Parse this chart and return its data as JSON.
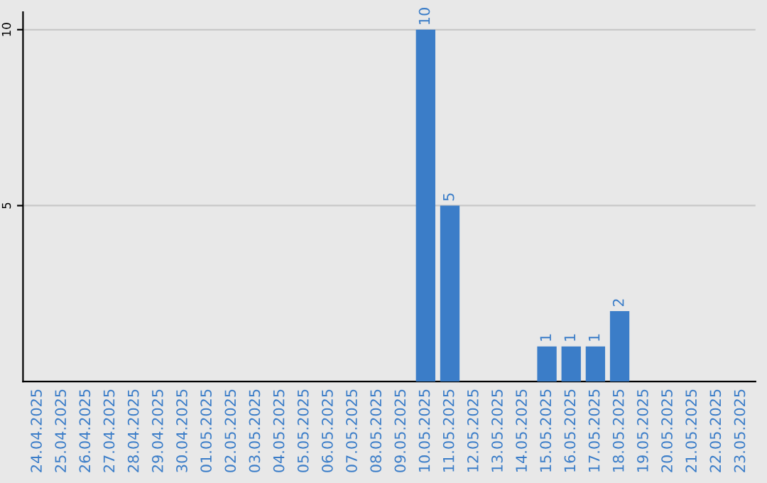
{
  "chart_data": {
    "type": "bar",
    "categories": [
      "24.04.2025",
      "25.04.2025",
      "26.04.2025",
      "27.04.2025",
      "28.04.2025",
      "29.04.2025",
      "30.04.2025",
      "01.05.2025",
      "02.05.2025",
      "03.05.2025",
      "04.05.2025",
      "05.05.2025",
      "06.05.2025",
      "07.05.2025",
      "08.05.2025",
      "09.05.2025",
      "10.05.2025",
      "11.05.2025",
      "12.05.2025",
      "13.05.2025",
      "14.05.2025",
      "15.05.2025",
      "16.05.2025",
      "17.05.2025",
      "18.05.2025",
      "19.05.2025",
      "20.05.2025",
      "21.05.2025",
      "22.05.2025",
      "23.05.2025"
    ],
    "values": [
      0,
      0,
      0,
      0,
      0,
      0,
      0,
      0,
      0,
      0,
      0,
      0,
      0,
      0,
      0,
      0,
      10,
      5,
      0,
      0,
      0,
      1,
      1,
      1,
      2,
      0,
      0,
      0,
      0,
      0
    ],
    "value_labels": [
      null,
      null,
      null,
      null,
      null,
      null,
      null,
      null,
      null,
      null,
      null,
      null,
      null,
      null,
      null,
      null,
      "10",
      "5",
      null,
      null,
      null,
      "1",
      "1",
      "1",
      "2",
      null,
      null,
      null,
      null,
      null
    ],
    "color": "#3b7dc8",
    "ylim": [
      0,
      10.5
    ],
    "yticks": [
      5,
      10
    ],
    "grid": "y",
    "legend": false
  }
}
